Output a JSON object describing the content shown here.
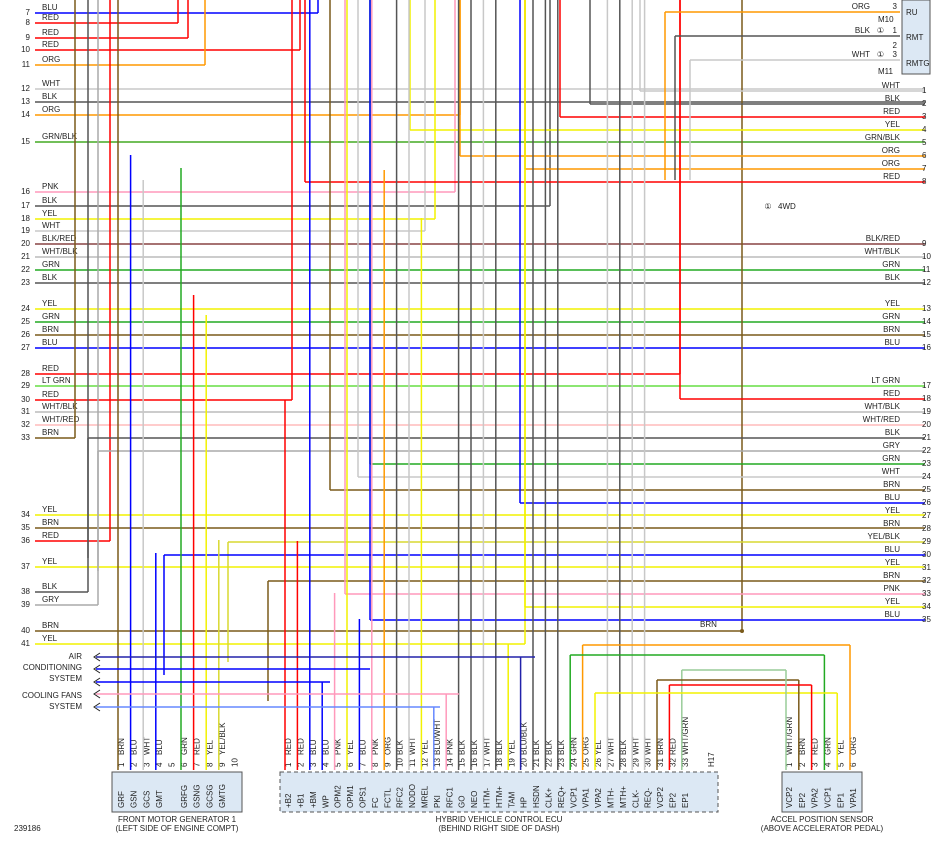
{
  "left_wires": [
    {
      "number": 7,
      "label": "BLU"
    },
    {
      "number": 8,
      "label": "RED"
    },
    {
      "number": 9,
      "label": "RED"
    },
    {
      "number": 10,
      "label": "RED"
    },
    {
      "number": 11,
      "label": "ORG"
    },
    {
      "number": 12,
      "label": "WHT"
    },
    {
      "number": 13,
      "label": "BLK"
    },
    {
      "number": 14,
      "label": "ORG"
    },
    {
      "number": 15,
      "label": "GRN/BLK"
    },
    {
      "number": 16,
      "label": "PNK"
    },
    {
      "number": 17,
      "label": "BLK"
    },
    {
      "number": 18,
      "label": "YEL"
    },
    {
      "number": 19,
      "label": "WHT"
    },
    {
      "number": 20,
      "label": "BLK/RED"
    },
    {
      "number": 21,
      "label": "WHT/BLK"
    },
    {
      "number": 22,
      "label": "GRN"
    },
    {
      "number": 23,
      "label": "BLK"
    },
    {
      "number": 24,
      "label": "YEL"
    },
    {
      "number": 25,
      "label": "GRN"
    },
    {
      "number": 26,
      "label": "BRN"
    },
    {
      "number": 27,
      "label": "BLU"
    },
    {
      "number": 28,
      "label": "RED"
    },
    {
      "number": 29,
      "label": "LT GRN"
    },
    {
      "number": 30,
      "label": "RED"
    },
    {
      "number": 31,
      "label": "WHT/BLK"
    },
    {
      "number": 32,
      "label": "WHT/RED"
    },
    {
      "number": 33,
      "label": "BRN"
    },
    {
      "number": 34,
      "label": "YEL"
    },
    {
      "number": 35,
      "label": "BRN"
    },
    {
      "number": 36,
      "label": "RED"
    },
    {
      "number": 37,
      "label": "YEL"
    },
    {
      "number": 38,
      "label": "BLK"
    },
    {
      "number": 39,
      "label": "GRY"
    },
    {
      "number": 40,
      "label": "BRN"
    },
    {
      "number": 41,
      "label": "YEL"
    }
  ],
  "right_wires": [
    {
      "number": 1,
      "label": "WHT"
    },
    {
      "number": 2,
      "label": "BLK"
    },
    {
      "number": 3,
      "label": "RED"
    },
    {
      "number": 4,
      "label": "YEL"
    },
    {
      "number": 5,
      "label": "GRN/BLK"
    },
    {
      "number": 6,
      "label": "ORG"
    },
    {
      "number": 7,
      "label": "ORG"
    },
    {
      "number": 8,
      "label": "RED"
    },
    {
      "number": 9,
      "label": "BLK/RED"
    },
    {
      "number": 10,
      "label": "WHT/BLK"
    },
    {
      "number": 11,
      "label": "GRN"
    },
    {
      "number": 12,
      "label": "BLK"
    },
    {
      "number": 13,
      "label": "YEL"
    },
    {
      "number": 14,
      "label": "GRN"
    },
    {
      "number": 15,
      "label": "BRN"
    },
    {
      "number": 16,
      "label": "BLU"
    },
    {
      "number": 17,
      "label": "LT GRN"
    },
    {
      "number": 18,
      "label": "RED"
    },
    {
      "number": 19,
      "label": "WHT/BLK"
    },
    {
      "number": 20,
      "label": "WHT/RED"
    },
    {
      "number": 21,
      "label": "BLK"
    },
    {
      "number": 22,
      "label": "GRY"
    },
    {
      "number": 23,
      "label": "GRN"
    },
    {
      "number": 24,
      "label": "WHT"
    },
    {
      "number": 25,
      "label": "BRN"
    },
    {
      "number": 26,
      "label": "BLU"
    },
    {
      "number": 27,
      "label": "YEL"
    },
    {
      "number": 28,
      "label": "BRN"
    },
    {
      "number": 29,
      "label": "YEL/BLK"
    },
    {
      "number": 30,
      "label": "BLU"
    },
    {
      "number": 31,
      "label": "YEL"
    },
    {
      "number": 32,
      "label": "BRN"
    },
    {
      "number": 33,
      "label": "PNK"
    },
    {
      "number": 34,
      "label": "YEL"
    },
    {
      "number": 35,
      "label": "BLU"
    }
  ],
  "relay_box": {
    "wires": [
      {
        "label": "ORG",
        "pin": 3
      },
      {
        "label": "BLK",
        "note": "①",
        "pin": 1
      },
      {
        "label": "WHT",
        "note": "①",
        "pin": 3
      }
    ],
    "extra_pin": 2,
    "names": [
      "RU",
      "RMT",
      "RMTG"
    ],
    "refs": [
      "M10",
      "M11"
    ]
  },
  "note": {
    "symbol": "①",
    "text": "4WD"
  },
  "splice_label": "BRN",
  "arrows": {
    "air_conditioning": [
      "AIR",
      "CONDITIONING",
      "SYSTEM"
    ],
    "cooling_fans": [
      "COOLING FANS",
      "SYSTEM"
    ]
  },
  "front_motor_generator": {
    "title": "FRONT MOTOR GENERATOR 1",
    "location": "(LEFT SIDE OF ENGINE COMPT)",
    "pins": [
      {
        "number": 1,
        "wire": "BRN",
        "name": "GRF"
      },
      {
        "number": 2,
        "wire": "BLU",
        "name": "GSN"
      },
      {
        "number": 3,
        "wire": "WHT",
        "name": "GCS"
      },
      {
        "number": 4,
        "wire": "BLU",
        "name": "GMT"
      },
      {
        "number": 5,
        "wire": null,
        "name": null
      },
      {
        "number": 6,
        "wire": "GRN",
        "name": "GRFG"
      },
      {
        "number": 7,
        "wire": "RED",
        "name": "GSNG"
      },
      {
        "number": 8,
        "wire": "YEL",
        "name": "GCSG"
      },
      {
        "number": 9,
        "wire": "YEL/BLK",
        "name": "GMTG"
      },
      {
        "number": 10,
        "wire": null,
        "name": null
      }
    ]
  },
  "hybrid_ecu": {
    "title": "HYBRID VEHICLE CONTROL ECU",
    "location": "(BEHIND RIGHT SIDE OF DASH)",
    "code": "H17",
    "pins": [
      {
        "number": 1,
        "wire": "RED",
        "name": "+B2"
      },
      {
        "number": 2,
        "wire": "RED",
        "name": "+B1"
      },
      {
        "number": 3,
        "wire": "BLU",
        "name": "+BM"
      },
      {
        "number": 4,
        "wire": "BLU",
        "name": "WP"
      },
      {
        "number": 5,
        "wire": "PNK",
        "name": "OPM2"
      },
      {
        "number": 6,
        "wire": "YEL",
        "name": "OPM1"
      },
      {
        "number": 7,
        "wire": "BLU",
        "name": "OPS1"
      },
      {
        "number": 8,
        "wire": "PNK",
        "name": "FC"
      },
      {
        "number": 9,
        "wire": "ORG",
        "name": "FCTL"
      },
      {
        "number": 10,
        "wire": "BLK",
        "name": "RFC2"
      },
      {
        "number": 11,
        "wire": "WHT",
        "name": "NODO"
      },
      {
        "number": 12,
        "wire": "YEL",
        "name": "MREL"
      },
      {
        "number": 13,
        "wire": "BLU/WHT",
        "name": "PKI"
      },
      {
        "number": 14,
        "wire": "PNK",
        "name": "RFC1"
      },
      {
        "number": 15,
        "wire": "BLK",
        "name": "GO"
      },
      {
        "number": 16,
        "wire": "BLK",
        "name": "NEO"
      },
      {
        "number": 17,
        "wire": "WHT",
        "name": "HTM-"
      },
      {
        "number": 18,
        "wire": "BLK",
        "name": "HTM+"
      },
      {
        "number": 19,
        "wire": "YEL",
        "name": "TAM"
      },
      {
        "number": 20,
        "wire": "BLU/BLK",
        "name": "HP"
      },
      {
        "number": 21,
        "wire": "BLK",
        "name": "HSDN"
      },
      {
        "number": 22,
        "wire": "BLK",
        "name": "CLK+"
      },
      {
        "number": 23,
        "wire": "BLK",
        "name": "REQ+"
      },
      {
        "number": 24,
        "wire": "GRN",
        "name": "VCP1"
      },
      {
        "number": 25,
        "wire": "ORG",
        "name": "VPA1"
      },
      {
        "number": 26,
        "wire": "YEL",
        "name": "VPA2"
      },
      {
        "number": 27,
        "wire": "WHT",
        "name": "MTH-"
      },
      {
        "number": 28,
        "wire": "BLK",
        "name": "MTH+"
      },
      {
        "number": 29,
        "wire": "WHT",
        "name": "CLK-"
      },
      {
        "number": 30,
        "wire": "WHT",
        "name": "REQ-"
      },
      {
        "number": 31,
        "wire": "BRN",
        "name": "VCP2"
      },
      {
        "number": 32,
        "wire": "RED",
        "name": "EP2"
      },
      {
        "number": 33,
        "wire": "WHT/GRN",
        "name": "EP1"
      }
    ]
  },
  "accel_sensor": {
    "title": "ACCEL POSITION SENSOR",
    "location": "(ABOVE ACCELERATOR PEDAL)",
    "pins": [
      {
        "number": 1,
        "wire": "WHT/GRN",
        "name": "VCP2"
      },
      {
        "number": 2,
        "wire": "BRN",
        "name": "EP2"
      },
      {
        "number": 3,
        "wire": "RED",
        "name": "VPA2"
      },
      {
        "number": 4,
        "wire": "GRN",
        "name": "VCP1"
      },
      {
        "number": 5,
        "wire": "YEL",
        "name": "EP1"
      },
      {
        "number": 6,
        "wire": "ORG",
        "name": "VPA1"
      }
    ]
  },
  "figure_id": "239186"
}
